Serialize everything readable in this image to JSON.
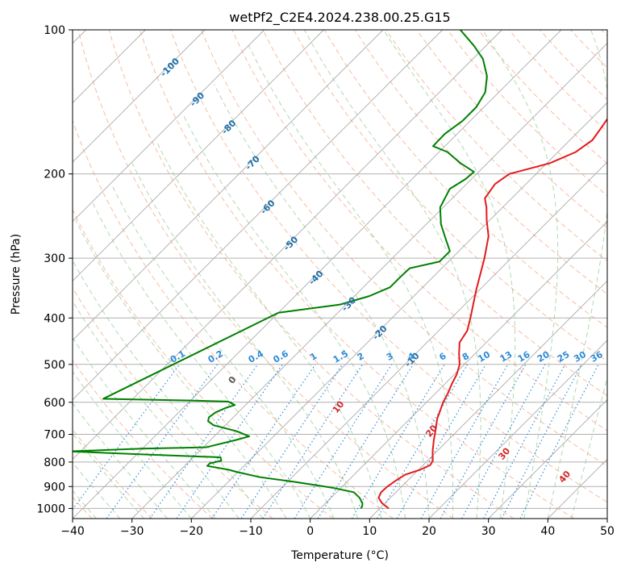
{
  "chart_data": {
    "type": "line",
    "subtype": "skew-t log-p diagram",
    "title": "wetPf2_C2E4.2024.238.00.25.G15",
    "xlabel": "Temperature (°C)",
    "ylabel": "Pressure (hPa)",
    "xlim": [
      -40,
      50
    ],
    "ylim": [
      1050,
      100
    ],
    "y_scale": "log",
    "x_ticks": [
      "−40",
      "−30",
      "−20",
      "−10",
      "0",
      "10",
      "20",
      "30",
      "40",
      "50"
    ],
    "y_ticks": [
      "100",
      "200",
      "300",
      "400",
      "500",
      "600",
      "700",
      "800",
      "900",
      "1000"
    ],
    "grid": true,
    "series": [
      {
        "role": "temperature",
        "color": "#e41a1c",
        "points": [
          [
            1000,
            11.5
          ],
          [
            975,
            9.5
          ],
          [
            950,
            8.0
          ],
          [
            925,
            7.5
          ],
          [
            900,
            7.6
          ],
          [
            875,
            8.0
          ],
          [
            850,
            8.6
          ],
          [
            830,
            10.3
          ],
          [
            812,
            11.2
          ],
          [
            795,
            10.9
          ],
          [
            760,
            9.3
          ],
          [
            720,
            7.6
          ],
          [
            700,
            6.8
          ],
          [
            650,
            4.6
          ],
          [
            600,
            2.8
          ],
          [
            575,
            2.1
          ],
          [
            550,
            1.2
          ],
          [
            525,
            0.4
          ],
          [
            500,
            -0.8
          ],
          [
            475,
            -2.7
          ],
          [
            450,
            -4.5
          ],
          [
            425,
            -5.2
          ],
          [
            400,
            -6.8
          ],
          [
            350,
            -10.5
          ],
          [
            300,
            -14.5
          ],
          [
            270,
            -17.5
          ],
          [
            250,
            -20.5
          ],
          [
            235,
            -22.7
          ],
          [
            225,
            -24.5
          ],
          [
            210,
            -25.2
          ],
          [
            200,
            -24.5
          ],
          [
            190,
            -19.5
          ],
          [
            180,
            -17.0
          ],
          [
            170,
            -16.2
          ],
          [
            160,
            -16.8
          ],
          [
            150,
            -17.5
          ],
          [
            140,
            -18.5
          ],
          [
            130,
            -19.8
          ],
          [
            120,
            -21.0
          ],
          [
            110,
            -23.0
          ],
          [
            105,
            -24.8
          ],
          [
            100,
            -27.2
          ]
        ]
      },
      {
        "role": "dewpoint",
        "color": "#008000",
        "points": [
          [
            1000,
            6.8
          ],
          [
            990,
            6.7
          ],
          [
            975,
            6.2
          ],
          [
            950,
            4.8
          ],
          [
            925,
            2.9
          ],
          [
            905,
            -1.5
          ],
          [
            880,
            -8.8
          ],
          [
            860,
            -15.5
          ],
          [
            840,
            -20.0
          ],
          [
            830,
            -22.0
          ],
          [
            815,
            -26.2
          ],
          [
            805,
            -26.2
          ],
          [
            795,
            -24.7
          ],
          [
            782,
            -25.4
          ],
          [
            770,
            -40.0
          ],
          [
            760,
            -52
          ],
          [
            750,
            -40.0
          ],
          [
            745,
            -29.5
          ],
          [
            720,
            -25.8
          ],
          [
            707,
            -24.1
          ],
          [
            690,
            -27.0
          ],
          [
            670,
            -32.0
          ],
          [
            657,
            -33.6
          ],
          [
            645,
            -34.1
          ],
          [
            630,
            -33.8
          ],
          [
            616,
            -32.8
          ],
          [
            608,
            -31.8
          ],
          [
            598,
            -33.5
          ],
          [
            595,
            -40.0
          ],
          [
            590,
            -55
          ],
          [
            390,
            -40.0
          ],
          [
            375,
            -31.0
          ],
          [
            360,
            -27.5
          ],
          [
            345,
            -25.5
          ],
          [
            330,
            -25.5
          ],
          [
            315,
            -25.4
          ],
          [
            305,
            -21.5
          ],
          [
            290,
            -21.5
          ],
          [
            275,
            -24.0
          ],
          [
            255,
            -27.5
          ],
          [
            235,
            -30.5
          ],
          [
            215,
            -32.0
          ],
          [
            205,
            -31.0
          ],
          [
            198,
            -30.8
          ],
          [
            190,
            -34.5
          ],
          [
            180,
            -38.6
          ],
          [
            175,
            -42.0
          ],
          [
            165,
            -42.1
          ],
          [
            155,
            -41.3
          ],
          [
            145,
            -41.3
          ],
          [
            135,
            -42.3
          ],
          [
            125,
            -44.7
          ],
          [
            115,
            -48.3
          ],
          [
            108,
            -52.0
          ],
          [
            100,
            -57.0
          ]
        ]
      }
    ],
    "isotherm_labels": [
      "-100",
      "-90",
      "-80",
      "-70",
      "-60",
      "-50",
      "-40",
      "-30",
      "-20",
      "-10"
    ],
    "mixing_ratio_labels": [
      "0.1",
      "0.2",
      "0.4",
      "0.6",
      "1",
      "1.5",
      "2",
      "3",
      "4",
      "6",
      "8",
      "10",
      "13",
      "16",
      "20",
      "25",
      "30",
      "36"
    ],
    "moist_adiabat_labels": [
      "0",
      "10",
      "20",
      "30",
      "40"
    ],
    "colors": {
      "temperature": "#e41a1c",
      "dewpoint": "#008000",
      "isotherm": "#aaaaaa",
      "dry_adiabat": "#f4a582",
      "moist_adiabat": "#9ccf9c",
      "mixing_ratio": "#2e8bd6",
      "isotherm_label": "#1f6fa8",
      "moist_label": "#d62728",
      "grid": "#b0b0b0"
    }
  }
}
